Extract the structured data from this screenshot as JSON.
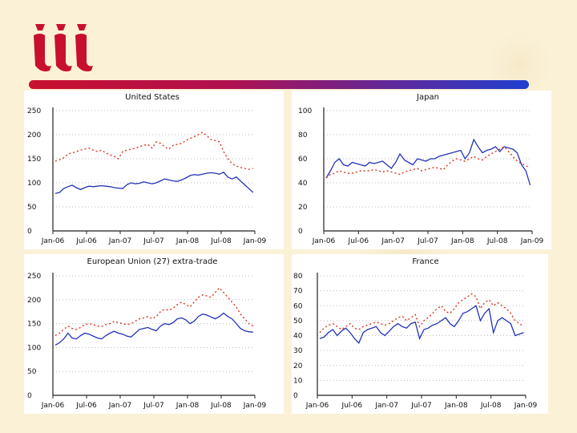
{
  "logo": {
    "text": "iii"
  },
  "colors": {
    "solid": "#2233bb",
    "dotted": "#dd3322",
    "axis": "#222222",
    "panel": "#ffffff"
  },
  "chart_data": [
    {
      "type": "line",
      "title": "United States",
      "xticks": [
        "Jan-06",
        "Jul-06",
        "Jan-07",
        "Jul-07",
        "Jan-08",
        "Jul-08",
        "Jan-09"
      ],
      "yticks": [
        "0",
        "50",
        "100",
        "150",
        "200",
        "250"
      ],
      "ylim": [
        0,
        250
      ],
      "series": [
        {
          "style": "solid",
          "values": [
            78,
            80,
            88,
            92,
            95,
            90,
            86,
            90,
            93,
            92,
            93,
            94,
            93,
            92,
            90,
            89,
            88,
            96,
            100,
            98,
            99,
            102,
            100,
            98,
            100,
            104,
            108,
            106,
            104,
            103,
            106,
            110,
            115,
            117,
            116,
            118,
            120,
            121,
            120,
            118,
            122,
            112,
            108,
            112,
            104,
            96,
            88,
            80
          ]
        },
        {
          "style": "dotted",
          "values": [
            145,
            148,
            152,
            160,
            162,
            165,
            168,
            170,
            172,
            168,
            165,
            168,
            162,
            158,
            155,
            150,
            165,
            168,
            170,
            172,
            175,
            178,
            180,
            172,
            185,
            182,
            175,
            170,
            178,
            180,
            182,
            188,
            192,
            196,
            200,
            205,
            198,
            190,
            188,
            185,
            165,
            150,
            140,
            135,
            132,
            130,
            128,
            130
          ]
        }
      ]
    },
    {
      "type": "line",
      "title": "Japan",
      "xticks": [
        "Jan-06",
        "Jul-06",
        "Jan-07",
        "Jul-07",
        "Jan-08",
        "Jul-08",
        "Jan-09"
      ],
      "yticks": [
        "0",
        "20",
        "40",
        "60",
        "80",
        "100"
      ],
      "ylim": [
        0,
        100
      ],
      "series": [
        {
          "style": "solid",
          "values": [
            44,
            50,
            57,
            60,
            55,
            54,
            57,
            56,
            55,
            54,
            57,
            56,
            57,
            58,
            55,
            52,
            57,
            64,
            59,
            57,
            55,
            60,
            59,
            58,
            60,
            60,
            62,
            63,
            64,
            65,
            66,
            67,
            60,
            65,
            76,
            70,
            65,
            67,
            68,
            70,
            66,
            70,
            69,
            68,
            65,
            55,
            50,
            38
          ]
        },
        {
          "style": "dotted",
          "values": [
            44,
            47,
            48,
            50,
            49,
            48,
            48,
            49,
            50,
            50,
            50,
            51,
            50,
            49,
            50,
            49,
            48,
            47,
            49,
            50,
            51,
            52,
            50,
            51,
            52,
            53,
            52,
            51,
            55,
            58,
            60,
            59,
            58,
            60,
            62,
            60,
            59,
            62,
            64,
            66,
            68,
            70,
            66,
            62,
            58,
            56,
            54,
            53
          ]
        }
      ]
    },
    {
      "type": "line",
      "title": "European Union (27) extra-trade",
      "xticks": [
        "Jan-06",
        "Jul-06",
        "Jan-07",
        "Jul-07",
        "Jan-08",
        "Jul-08",
        "Jan-09"
      ],
      "yticks": [
        "0",
        "50",
        "100",
        "150",
        "200",
        "250"
      ],
      "ylim": [
        0,
        250
      ],
      "series": [
        {
          "style": "solid",
          "values": [
            105,
            110,
            118,
            130,
            120,
            118,
            125,
            130,
            128,
            124,
            120,
            118,
            125,
            130,
            134,
            130,
            128,
            124,
            122,
            130,
            138,
            140,
            142,
            138,
            135,
            145,
            150,
            148,
            152,
            160,
            162,
            158,
            150,
            155,
            165,
            170,
            168,
            164,
            160,
            165,
            172,
            165,
            160,
            150,
            140,
            135,
            133,
            132
          ]
        },
        {
          "style": "dotted",
          "values": [
            125,
            130,
            138,
            145,
            140,
            138,
            142,
            148,
            150,
            148,
            145,
            144,
            148,
            150,
            155,
            152,
            150,
            148,
            150,
            155,
            160,
            162,
            165,
            160,
            165,
            175,
            180,
            178,
            182,
            190,
            195,
            190,
            185,
            195,
            205,
            210,
            208,
            205,
            215,
            225,
            215,
            205,
            195,
            185,
            170,
            160,
            150,
            145
          ]
        }
      ]
    },
    {
      "type": "line",
      "title": "France",
      "xticks": [
        "Jan-06",
        "Jul-06",
        "Jan-07",
        "Jul-07",
        "Jan-08",
        "Jul-08",
        "Jan-09"
      ],
      "yticks": [
        "0",
        "10",
        "20",
        "30",
        "40",
        "50",
        "60",
        "70",
        "80"
      ],
      "ylim": [
        0,
        80
      ],
      "series": [
        {
          "style": "solid",
          "values": [
            38,
            39,
            42,
            44,
            40,
            43,
            45,
            42,
            38,
            35,
            42,
            44,
            45,
            46,
            42,
            40,
            43,
            46,
            48,
            46,
            45,
            48,
            49,
            38,
            44,
            45,
            47,
            48,
            50,
            52,
            48,
            46,
            50,
            55,
            56,
            58,
            60,
            50,
            55,
            58,
            42,
            50,
            52,
            50,
            48,
            40,
            41,
            42
          ]
        },
        {
          "style": "dotted",
          "values": [
            42,
            45,
            47,
            48,
            46,
            44,
            46,
            48,
            45,
            44,
            46,
            47,
            48,
            49,
            48,
            47,
            48,
            50,
            52,
            53,
            50,
            52,
            54,
            46,
            50,
            52,
            55,
            58,
            60,
            56,
            55,
            58,
            62,
            64,
            66,
            68,
            66,
            58,
            62,
            64,
            60,
            62,
            60,
            58,
            55,
            50,
            48,
            46
          ]
        }
      ]
    }
  ]
}
